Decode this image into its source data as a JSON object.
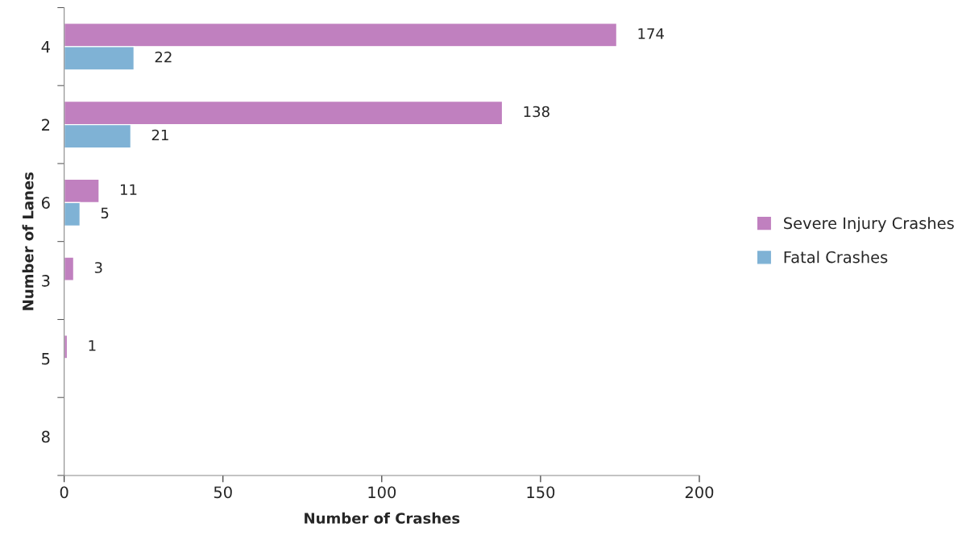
{
  "chart_data": {
    "type": "bar",
    "orientation": "horizontal",
    "xlabel": "Number of Crashes",
    "ylabel": "Number of Lanes",
    "categories": [
      "4",
      "2",
      "6",
      "3",
      "5",
      "8"
    ],
    "series": [
      {
        "name": "Severe Injury Crashes",
        "color": "#c080bf",
        "values": [
          174,
          138,
          11,
          3,
          1,
          null
        ]
      },
      {
        "name": "Fatal Crashes",
        "color": "#7fb2d5",
        "values": [
          22,
          21,
          5,
          null,
          null,
          null
        ]
      }
    ],
    "xlim": [
      0,
      200
    ],
    "xticks": [
      0,
      50,
      100,
      150,
      200
    ],
    "grid": false,
    "legend": "right",
    "data_labels": true
  }
}
